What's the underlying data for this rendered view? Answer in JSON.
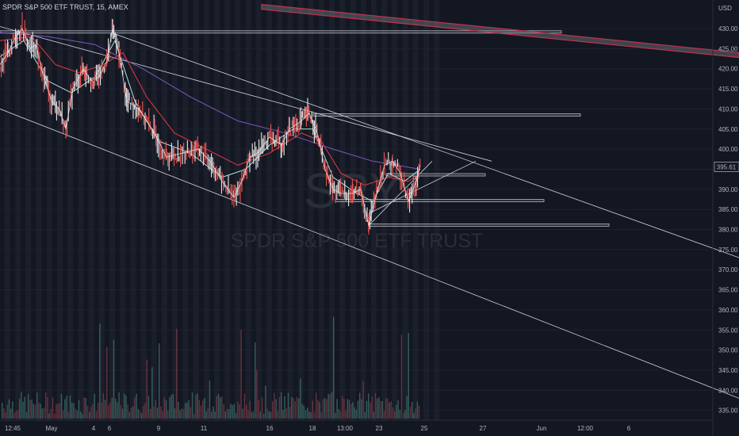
{
  "title": "SPDR S&P 500 ETF TRUST, 15, AMEX",
  "currency": "USD",
  "watermark": {
    "symbol": "SPY",
    "name": "SPDR S&P 500 ETF TRUST"
  },
  "last_price_label": "395.61",
  "chart_data": {
    "type": "line",
    "interval": "15",
    "y_axis": {
      "ticks": [
        430,
        425,
        420,
        415,
        410,
        405,
        400,
        395,
        390,
        385,
        380,
        375,
        370,
        365,
        360,
        355,
        350,
        345,
        340,
        335
      ],
      "tick_labels": [
        "430.00",
        "425.00",
        "420.00",
        "415.00",
        "410.00",
        "405.00",
        "400.00",
        "395.00",
        "390.00",
        "385.00",
        "380.00",
        "375.00",
        "370.00",
        "365.00",
        "360.00",
        "355.00",
        "350.00",
        "345.00",
        "340.00",
        "335.00"
      ]
    },
    "x_axis": {
      "tick_labels": [
        "12:45",
        "May",
        "4",
        "6",
        "9",
        "11",
        "16",
        "18",
        "13:00",
        "23",
        "25",
        "27",
        "Jun",
        "12:00",
        "6"
      ]
    },
    "price_path": [
      [
        0,
        421
      ],
      [
        10,
        424
      ],
      [
        20,
        428
      ],
      [
        28,
        430
      ],
      [
        38,
        425
      ],
      [
        45,
        426
      ],
      [
        55,
        418
      ],
      [
        65,
        412
      ],
      [
        75,
        410
      ],
      [
        83,
        405
      ],
      [
        92,
        415
      ],
      [
        105,
        420
      ],
      [
        115,
        417
      ],
      [
        125,
        418
      ],
      [
        135,
        422
      ],
      [
        142,
        430
      ],
      [
        150,
        424
      ],
      [
        160,
        412
      ],
      [
        175,
        410
      ],
      [
        195,
        404
      ],
      [
        210,
        398
      ],
      [
        230,
        399
      ],
      [
        250,
        400
      ],
      [
        265,
        397
      ],
      [
        280,
        392
      ],
      [
        295,
        388
      ],
      [
        305,
        392
      ],
      [
        315,
        398
      ],
      [
        325,
        399
      ],
      [
        340,
        403
      ],
      [
        355,
        401
      ],
      [
        365,
        405
      ],
      [
        380,
        407
      ],
      [
        390,
        409
      ],
      [
        400,
        404
      ],
      [
        410,
        395
      ],
      [
        420,
        390
      ],
      [
        430,
        389
      ],
      [
        445,
        389
      ],
      [
        455,
        390
      ],
      [
        465,
        381
      ],
      [
        475,
        389
      ],
      [
        485,
        396
      ],
      [
        495,
        397
      ],
      [
        505,
        394
      ],
      [
        515,
        387
      ],
      [
        525,
        392
      ],
      [
        530,
        396
      ]
    ],
    "ema_fast_path": [
      [
        0,
        423
      ],
      [
        30,
        427
      ],
      [
        60,
        417
      ],
      [
        90,
        414
      ],
      [
        120,
        418
      ],
      [
        145,
        427
      ],
      [
        170,
        412
      ],
      [
        200,
        402
      ],
      [
        240,
        399
      ],
      [
        280,
        393
      ],
      [
        310,
        395
      ],
      [
        340,
        401
      ],
      [
        370,
        405
      ],
      [
        395,
        405
      ],
      [
        420,
        393
      ],
      [
        450,
        389
      ],
      [
        470,
        387
      ],
      [
        490,
        394
      ],
      [
        510,
        392
      ],
      [
        530,
        395
      ]
    ],
    "ema_slow_path": [
      [
        0,
        427
      ],
      [
        40,
        428
      ],
      [
        70,
        421
      ],
      [
        100,
        419
      ],
      [
        130,
        421
      ],
      [
        155,
        424
      ],
      [
        185,
        413
      ],
      [
        220,
        404
      ],
      [
        260,
        400
      ],
      [
        300,
        396
      ],
      [
        340,
        399
      ],
      [
        380,
        404
      ],
      [
        405,
        402
      ],
      [
        430,
        394
      ],
      [
        460,
        391
      ],
      [
        490,
        393
      ],
      [
        515,
        392
      ],
      [
        530,
        394
      ]
    ],
    "ma_purple_path": [
      [
        0,
        429
      ],
      [
        60,
        428
      ],
      [
        120,
        426
      ],
      [
        180,
        420
      ],
      [
        240,
        413
      ],
      [
        300,
        407
      ],
      [
        360,
        404
      ],
      [
        420,
        400
      ],
      [
        470,
        397
      ],
      [
        530,
        395
      ]
    ],
    "trendlines": [
      {
        "from": [
          0,
          430.5
        ],
        "to": [
          620,
          397
        ]
      },
      {
        "from": [
          0,
          410
        ],
        "to": [
          932,
          338
        ]
      },
      {
        "from": [
          140,
          429
        ],
        "to": [
          932,
          373
        ]
      },
      {
        "from": [
          465,
          381
        ],
        "to": [
          545,
          397
        ]
      },
      {
        "from": [
          465,
          384
        ],
        "to": [
          600,
          397
        ]
      }
    ],
    "horizontal_zones": [
      {
        "x1": 0,
        "x2": 708,
        "price": 429.2,
        "thickness": 0.5
      },
      {
        "x1": 395,
        "x2": 732,
        "price": 408.6,
        "thickness": 0.4
      },
      {
        "x1": 487,
        "x2": 612,
        "price": 393.7,
        "thickness": 0.4
      },
      {
        "x1": 423,
        "x2": 686,
        "price": 387.3,
        "thickness": 0.4
      },
      {
        "x1": 465,
        "x2": 768,
        "price": 381.2,
        "thickness": 0.4
      }
    ],
    "red_channel": {
      "from": [
        330,
        436
      ],
      "to": [
        932,
        424
      ],
      "thickness": 1.2
    },
    "grid": true
  }
}
